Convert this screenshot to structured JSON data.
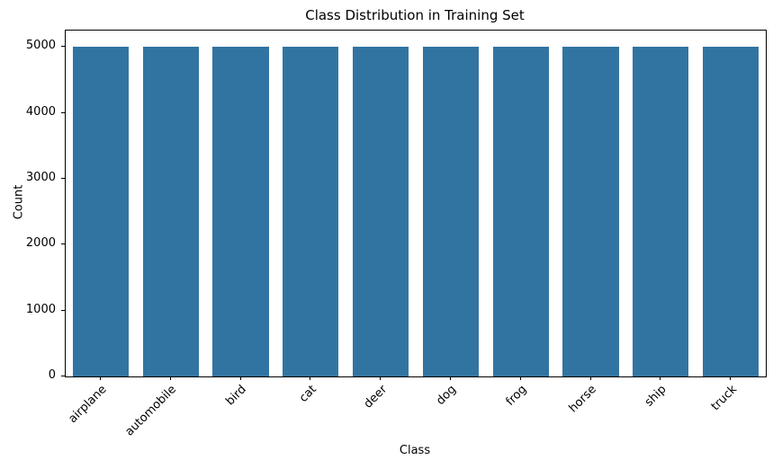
{
  "chart_data": {
    "type": "bar",
    "title": "Class Distribution in Training Set",
    "xlabel": "Class",
    "ylabel": "Count",
    "categories": [
      "airplane",
      "automobile",
      "bird",
      "cat",
      "deer",
      "dog",
      "frog",
      "horse",
      "ship",
      "truck"
    ],
    "values": [
      5000,
      5000,
      5000,
      5000,
      5000,
      5000,
      5000,
      5000,
      5000,
      5000
    ],
    "yticks": [
      0,
      1000,
      2000,
      3000,
      4000,
      5000
    ],
    "ylim": [
      0,
      5250
    ],
    "bar_color": "#3274a1",
    "grid": false,
    "legend_position": "none",
    "x_tick_rotation_deg": 45
  }
}
